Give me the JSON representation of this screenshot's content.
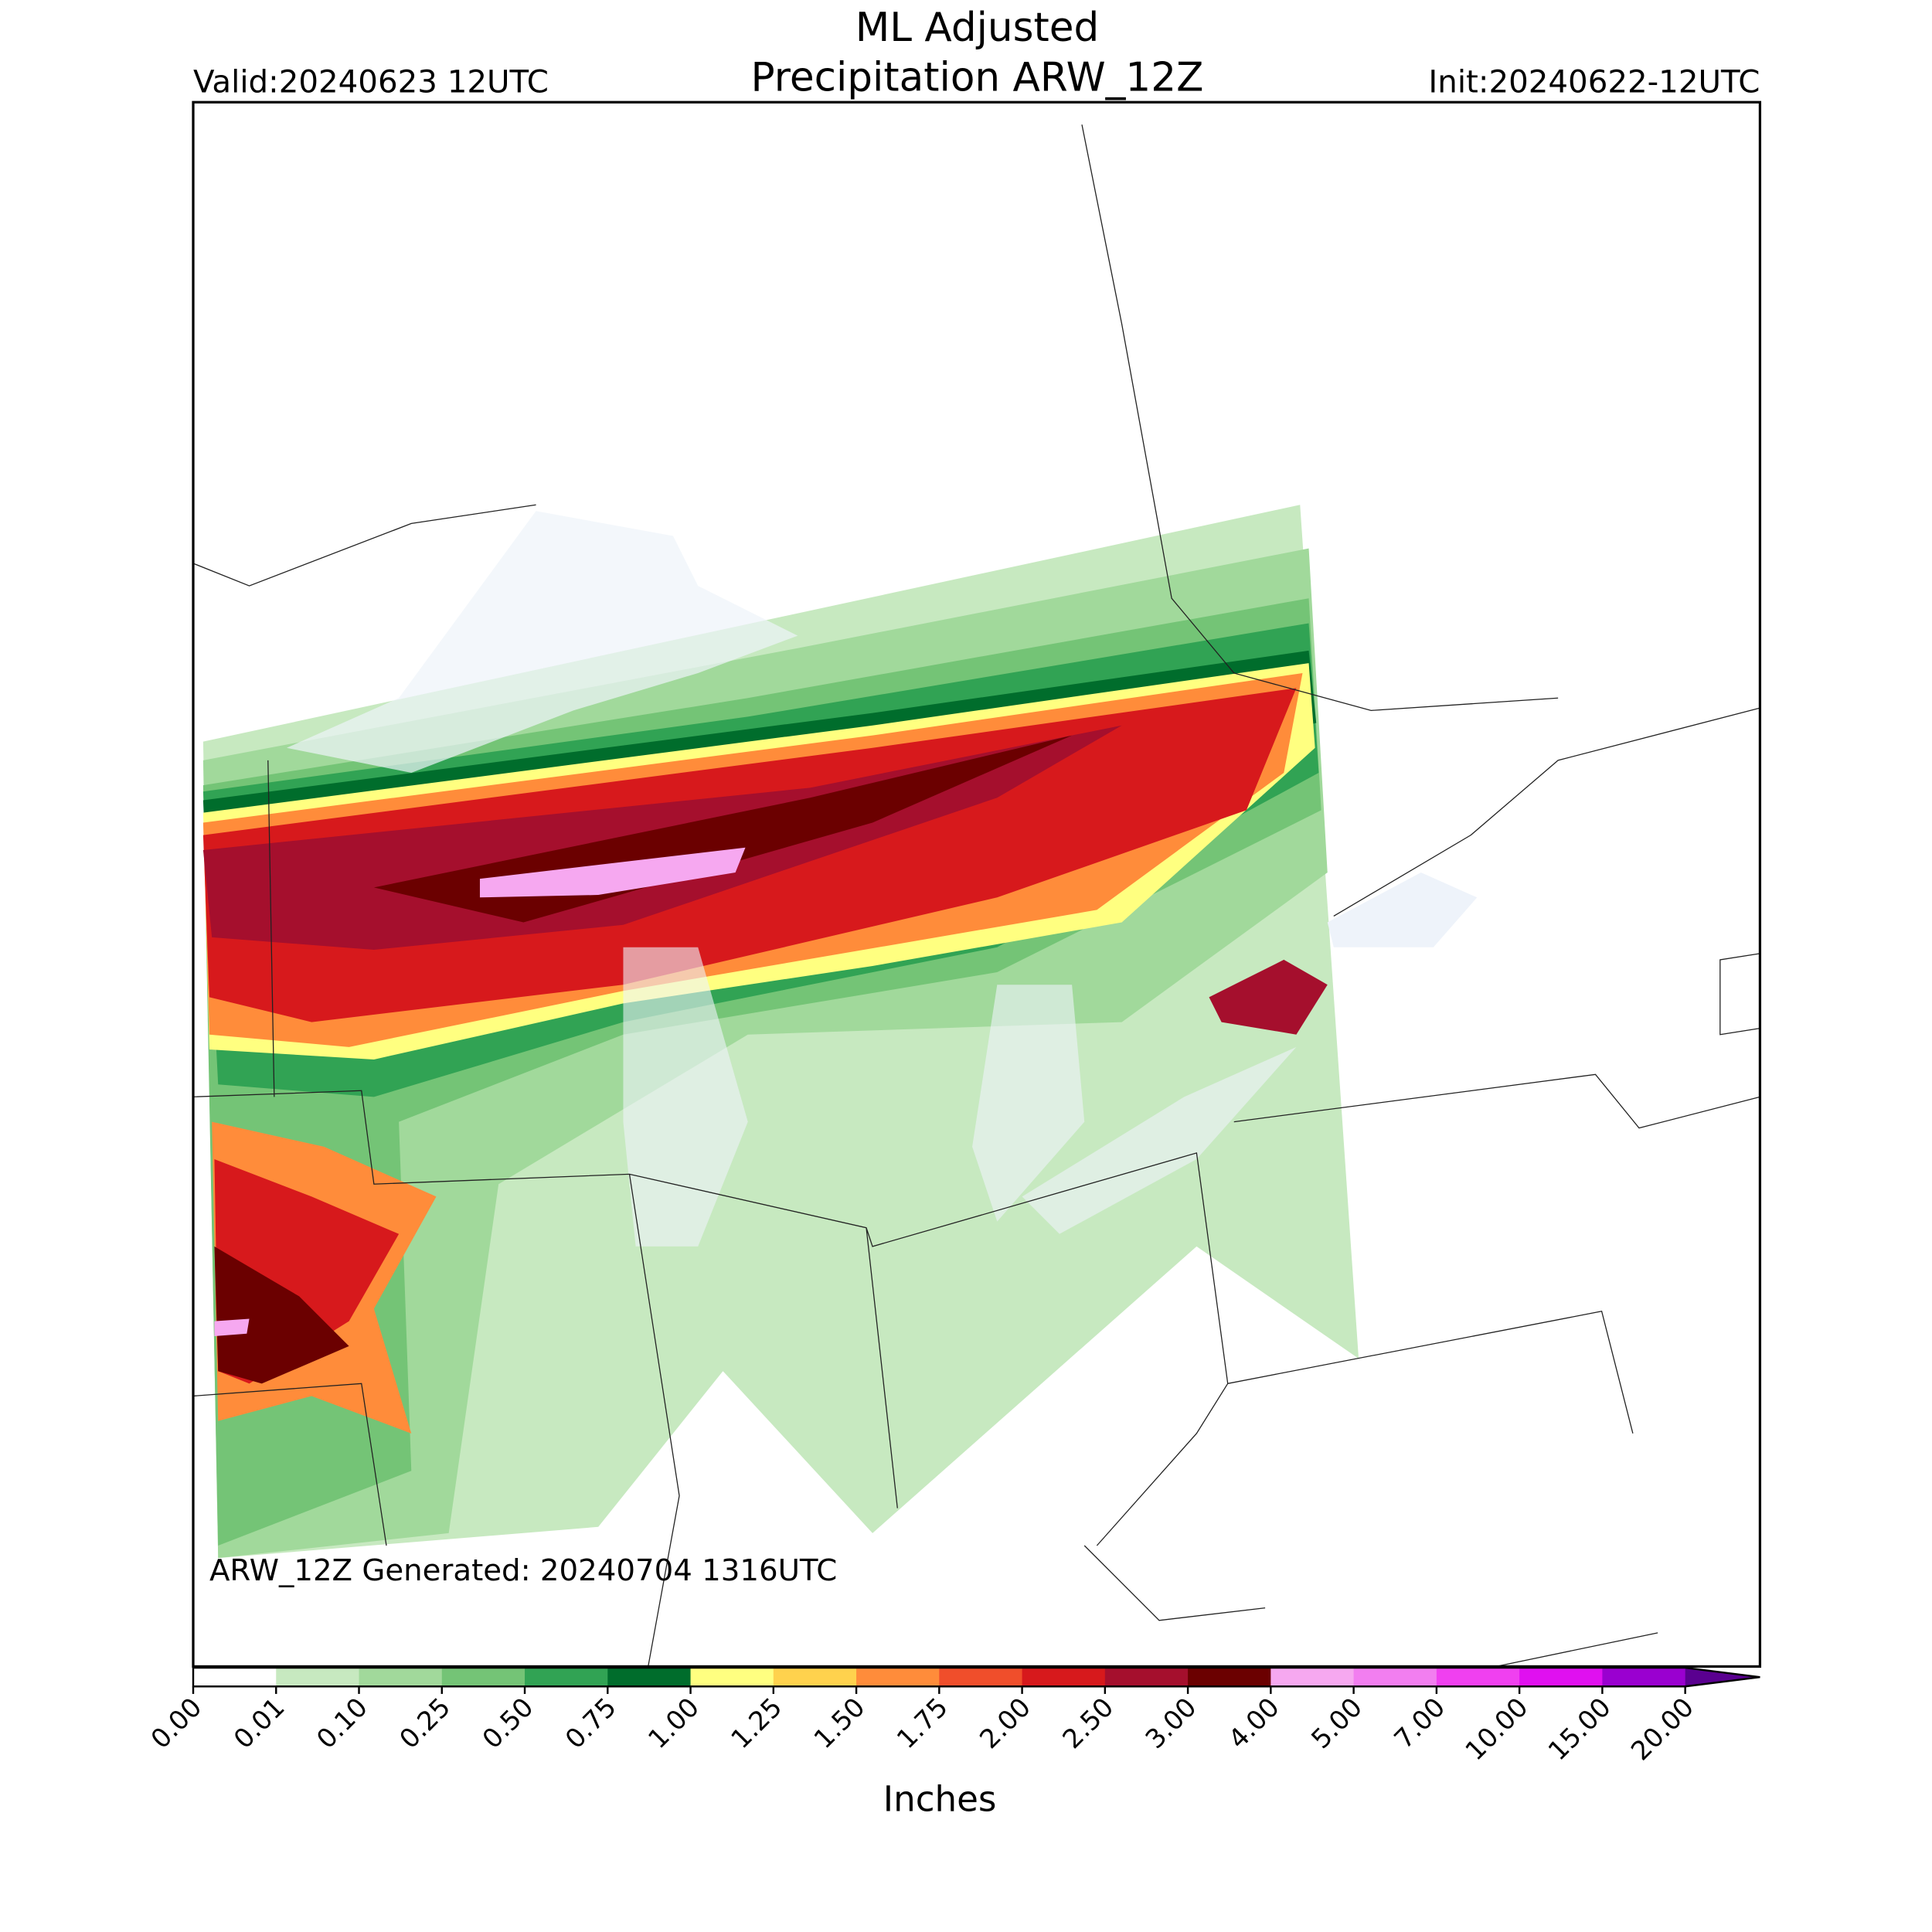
{
  "header": {
    "title_line1": "ML Adjusted",
    "title_line2": "Precipitation ARW_12Z",
    "valid": "Valid:20240623 12UTC",
    "init": "Init:20240622-12UTC"
  },
  "map": {
    "generated": "ARW_12Z Generated: 20240704 1316UTC"
  },
  "colorbar": {
    "ticks": [
      "0.00",
      "0.01",
      "0.10",
      "0.25",
      "0.50",
      "0.75",
      "1.00",
      "1.25",
      "1.50",
      "1.75",
      "2.00",
      "2.50",
      "3.00",
      "4.00",
      "5.00",
      "7.00",
      "10.00",
      "15.00",
      "20.00"
    ],
    "colors": [
      "#ffffff",
      "#c7e9c0",
      "#a1d99b",
      "#74c476",
      "#31a354",
      "#006d2c",
      "#ffff80",
      "#ffd24d",
      "#ff8c3a",
      "#f04e2b",
      "#d7191c",
      "#a50f2d",
      "#6b0000",
      "#f6a8f0",
      "#f27ef0",
      "#f040f0",
      "#e010f0",
      "#9a00d0"
    ],
    "extend_color": "#5a0090",
    "label": "Inches"
  }
}
